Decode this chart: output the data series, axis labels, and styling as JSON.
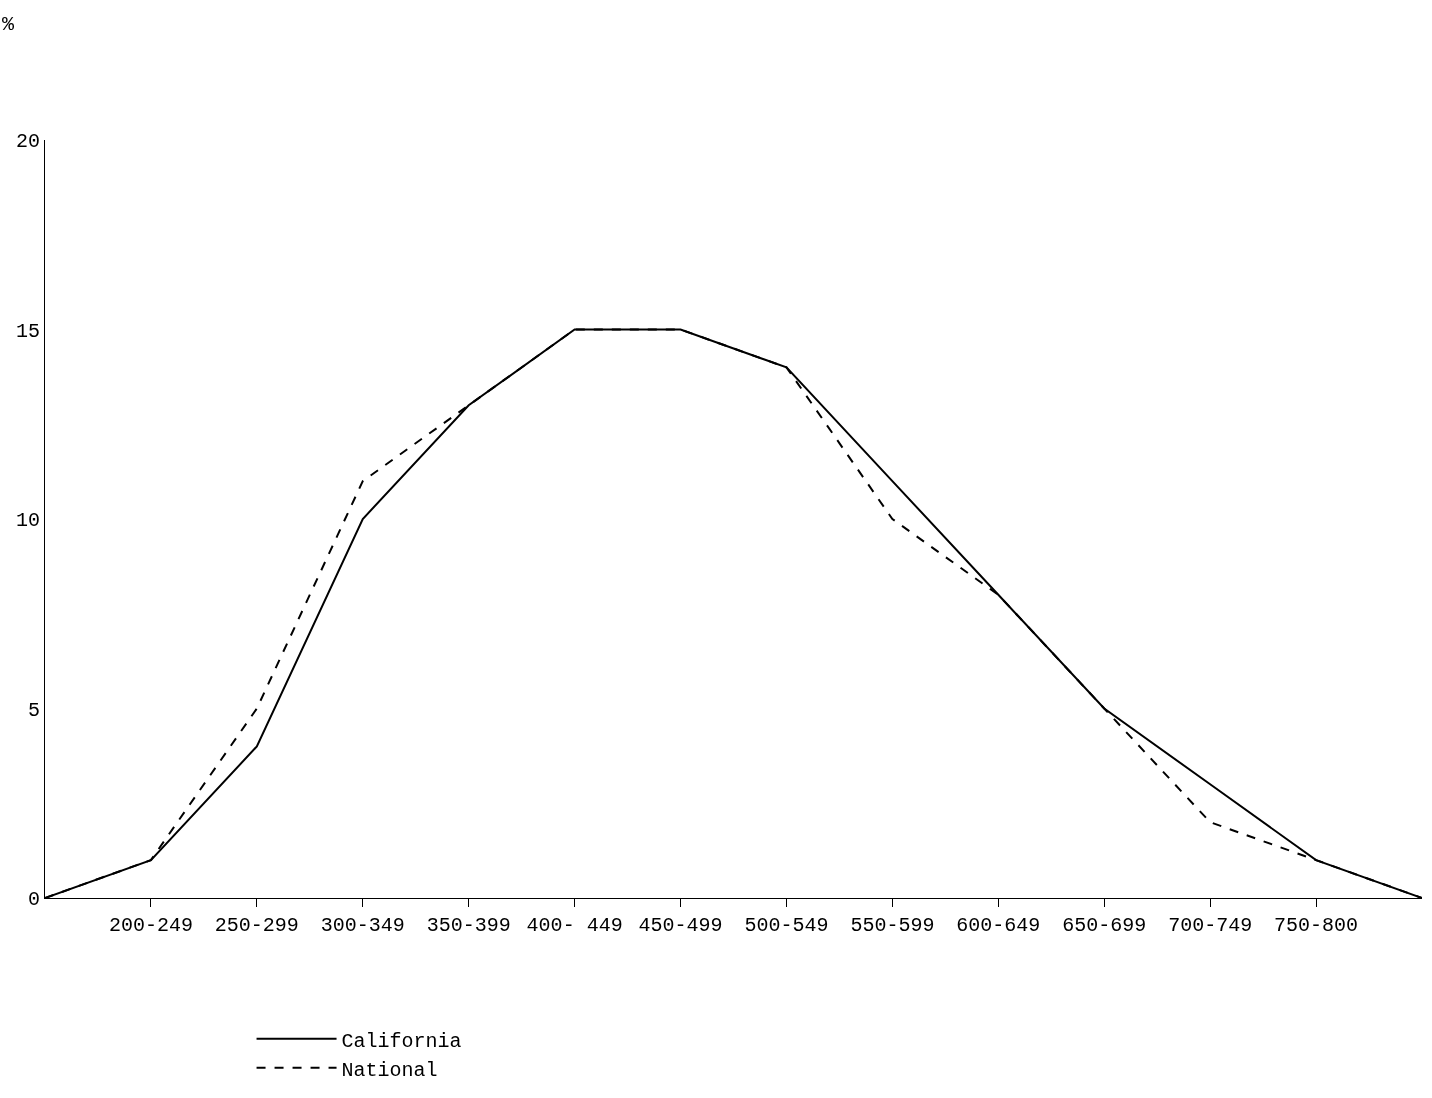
{
  "chart_data": {
    "type": "line",
    "ylabel": "%",
    "categories": [
      null,
      "200-249",
      "250-299",
      "300-349",
      "350-399",
      "400- 449",
      "450-499",
      "500-549",
      "550-599",
      "600-649",
      "650-699",
      "700-749",
      "750-800",
      null
    ],
    "ylim": [
      0,
      20
    ],
    "yticks": [
      0,
      5,
      10,
      15,
      20
    ],
    "series": [
      {
        "name": "California",
        "color": "#000000",
        "line_style": "solid",
        "values": [
          0,
          1,
          4,
          10,
          13,
          15,
          15,
          14,
          11,
          8,
          5,
          3,
          1,
          0
        ]
      },
      {
        "name": "National",
        "color": "#000000",
        "line_style": "dashed",
        "values": [
          0,
          1,
          5,
          11,
          13,
          15,
          15,
          14,
          10,
          8,
          5,
          2,
          1,
          0
        ]
      }
    ],
    "marker": "none",
    "grid": false,
    "legend": "bottom"
  }
}
